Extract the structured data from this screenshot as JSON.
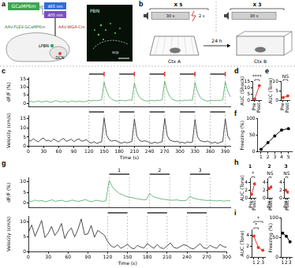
{
  "panel_labels": [
    "a",
    "b",
    "c",
    "d",
    "e",
    "f",
    "g",
    "h",
    "i"
  ],
  "diagram_a": {
    "sensor": "GCaMP6m",
    "light_1": "465 nm",
    "light_2": "405 nm",
    "virus_1": "AAV-WGA-Cre",
    "virus_2": "AAV-FLEX-GCaMP6m",
    "region_1": "LPBN",
    "region_2": "DCN",
    "image_labels": [
      "PBN",
      "scp"
    ]
  },
  "diagram_b": {
    "training": {
      "repeats": "X 5",
      "tone": "30 s",
      "shock": "2 s",
      "context": "Ctx A"
    },
    "delay": "24 h",
    "test": {
      "repeats": "X 3",
      "tone": "30 s",
      "context": "Ctx B"
    }
  },
  "chart_data": [
    {
      "type": "line",
      "y_label": "dF/F (%)",
      "color": "#2e9e4a",
      "grid": false,
      "tick_labels": "y",
      "x": [
        0,
        5,
        10,
        15,
        20,
        25,
        30,
        35,
        40,
        45,
        50,
        55,
        60,
        65,
        70,
        75,
        80,
        85,
        90,
        95,
        100,
        105,
        110,
        115,
        120,
        125,
        130,
        135,
        140,
        145,
        150,
        155,
        160,
        165,
        170,
        175,
        180,
        185,
        190,
        195,
        200,
        205,
        210,
        215,
        220,
        225,
        230,
        235,
        240,
        245,
        250,
        255,
        260,
        265,
        270,
        275,
        280,
        285,
        290,
        295,
        300,
        305,
        310,
        315,
        320,
        325,
        330,
        335,
        340,
        345,
        350,
        355,
        360,
        365,
        370,
        375,
        380,
        385,
        390,
        395,
        400
      ],
      "values": [
        1.0,
        1.4,
        0.8,
        1.2,
        1.6,
        0.9,
        1.1,
        1.5,
        1.0,
        0.7,
        1.3,
        1.8,
        1.2,
        0.9,
        1.4,
        1.1,
        0.8,
        1.6,
        1.3,
        1.0,
        1.5,
        1.2,
        0.9,
        1.4,
        1.8,
        1.5,
        2.0,
        1.6,
        1.9,
        2.2,
        13.0,
        7.5,
        4.0,
        2.6,
        1.9,
        1.5,
        1.7,
        2.0,
        1.6,
        1.8,
        2.1,
        1.9,
        12.5,
        7.0,
        3.8,
        2.4,
        1.8,
        1.4,
        1.6,
        1.9,
        1.5,
        2.0,
        1.8,
        2.2,
        13.5,
        7.8,
        4.2,
        2.7,
        1.9,
        1.5,
        1.7,
        1.6,
        2.0,
        1.8,
        2.1,
        1.9,
        12.8,
        7.2,
        3.9,
        2.5,
        1.8,
        1.4,
        1.6,
        1.9,
        1.7,
        2.0,
        1.8,
        2.2,
        13.2,
        7.4,
        4.0
      ],
      "xlim": [
        0,
        400
      ],
      "ylim": [
        -2,
        16
      ],
      "yticks": [
        0,
        5,
        10,
        15
      ],
      "tones": [
        [
          120,
          150
        ],
        [
          180,
          210
        ],
        [
          240,
          270
        ],
        [
          300,
          330
        ],
        [
          360,
          390
        ]
      ],
      "shocks": [
        150,
        210,
        270,
        330,
        390
      ]
    },
    {
      "type": "line",
      "x_label": "Time (s)",
      "y_label": "Velocity (cm/s)",
      "color": "#000000",
      "grid": false,
      "x": [
        0,
        5,
        10,
        15,
        20,
        25,
        30,
        35,
        40,
        45,
        50,
        55,
        60,
        65,
        70,
        75,
        80,
        85,
        90,
        95,
        100,
        105,
        110,
        115,
        120,
        125,
        130,
        135,
        140,
        145,
        150,
        155,
        160,
        165,
        170,
        175,
        180,
        185,
        190,
        195,
        200,
        205,
        210,
        215,
        220,
        225,
        230,
        235,
        240,
        245,
        250,
        255,
        260,
        265,
        270,
        275,
        280,
        285,
        290,
        295,
        300,
        305,
        310,
        315,
        320,
        325,
        330,
        335,
        340,
        345,
        350,
        355,
        360,
        365,
        370,
        375,
        380,
        385,
        390,
        395,
        400
      ],
      "values": [
        3.5,
        2.8,
        4.2,
        3.0,
        2.5,
        3.8,
        4.5,
        2.9,
        3.3,
        2.6,
        4.0,
        3.1,
        2.4,
        3.6,
        4.3,
        2.7,
        3.2,
        3.9,
        2.5,
        3.4,
        4.1,
        2.8,
        3.0,
        3.7,
        2.2,
        1.8,
        2.5,
        1.6,
        2.0,
        2.4,
        15.5,
        6.0,
        3.5,
        2.8,
        3.2,
        2.9,
        2.1,
        1.7,
        2.4,
        1.9,
        2.2,
        2.6,
        14.8,
        5.5,
        3.2,
        2.6,
        3.0,
        2.7,
        2.0,
        1.6,
        2.3,
        1.8,
        2.1,
        2.5,
        15.2,
        5.8,
        3.4,
        2.9,
        2.5,
        2.8,
        1.9,
        2.2,
        1.7,
        2.4,
        2.0,
        2.3,
        14.5,
        5.2,
        3.1,
        2.7,
        2.4,
        2.9,
        2.0,
        1.8,
        2.3,
        1.6,
        2.2,
        2.5,
        15.0,
        5.6,
        3.3
      ],
      "xlim": [
        0,
        400
      ],
      "xticks": [
        0,
        30,
        60,
        90,
        120,
        150,
        180,
        210,
        240,
        270,
        300,
        330,
        360,
        390
      ],
      "ylim": [
        0,
        17
      ],
      "yticks": [
        0,
        5,
        10,
        15
      ],
      "tones": [
        [
          120,
          150
        ],
        [
          180,
          210
        ],
        [
          240,
          270
        ],
        [
          300,
          330
        ],
        [
          360,
          390
        ]
      ]
    },
    {
      "type": "line",
      "categories": [
        "Pre",
        "Post"
      ],
      "values": [
        1.2,
        11.5
      ],
      "color": "#e03c31",
      "marker": "circle",
      "grid": false,
      "y_label": "AUC (Shock)",
      "ylim": [
        0,
        15
      ],
      "yticks": [
        0,
        5,
        10,
        15
      ],
      "annotations": [
        {
          "text": "****",
          "from": "Pre",
          "to": "Post"
        }
      ]
    },
    {
      "type": "line",
      "categories": [
        "Pre",
        "Post"
      ],
      "values": [
        1.5,
        2.3
      ],
      "color": "#e03c31",
      "marker": "circle",
      "grid": false,
      "y_label": "AUC (Tone)",
      "ylim": [
        0,
        10
      ],
      "yticks": [
        0,
        5,
        10
      ],
      "annotations": [
        {
          "text": "NS",
          "from": "Pre",
          "to": "Post"
        }
      ]
    },
    {
      "type": "line",
      "categories": [
        "1",
        "2",
        "3",
        "4",
        "5"
      ],
      "values": [
        8,
        28,
        48,
        66,
        70
      ],
      "color": "#000000",
      "marker": "circle",
      "grid": false,
      "y_label": "Freezing (%)",
      "ylim": [
        0,
        100
      ],
      "yticks": [
        0,
        50,
        100
      ]
    },
    {
      "type": "line",
      "y_label": "dF/F (%)",
      "color": "#2e9e4a",
      "grid": false,
      "tick_labels": "y",
      "x": [
        0,
        5,
        10,
        15,
        20,
        25,
        30,
        35,
        40,
        45,
        50,
        55,
        60,
        65,
        70,
        75,
        80,
        85,
        90,
        95,
        100,
        105,
        110,
        115,
        120,
        125,
        130,
        135,
        140,
        145,
        150,
        155,
        160,
        165,
        170,
        175,
        180,
        185,
        190,
        195,
        200,
        205,
        210,
        215,
        220,
        225,
        230,
        235,
        240,
        245,
        250,
        255,
        260,
        265,
        270,
        275,
        280,
        285,
        290,
        295,
        300
      ],
      "values": [
        1.2,
        0.8,
        1.5,
        1.0,
        1.3,
        0.7,
        1.1,
        1.6,
        0.9,
        1.2,
        1.4,
        0.8,
        1.0,
        1.5,
        1.1,
        0.9,
        1.3,
        1.7,
        1.0,
        0.8,
        1.4,
        1.2,
        0.9,
        1.1,
        10.5,
        7.5,
        5.8,
        4.6,
        3.9,
        3.2,
        2.8,
        2.5,
        2.2,
        1.9,
        1.7,
        1.6,
        4.5,
        3.2,
        2.6,
        2.2,
        1.9,
        1.7,
        1.5,
        1.4,
        1.6,
        1.3,
        1.2,
        1.4,
        3.2,
        2.4,
        2.0,
        1.7,
        1.5,
        1.3,
        1.4,
        1.2,
        1.1,
        1.3,
        1.0,
        1.2,
        1.1
      ],
      "xlim": [
        0,
        300
      ],
      "ylim": [
        -2,
        12
      ],
      "yticks": [
        0,
        5,
        10
      ],
      "tones": [
        [
          120,
          150
        ],
        [
          180,
          210
        ],
        [
          240,
          270
        ]
      ],
      "tone_labels": [
        "1",
        "2",
        "3"
      ]
    },
    {
      "type": "line",
      "x_label": "Time (s)",
      "y_label": "Velocity (cm/s)",
      "color": "#000000",
      "grid": false,
      "x": [
        0,
        5,
        10,
        15,
        20,
        25,
        30,
        35,
        40,
        45,
        50,
        55,
        60,
        65,
        70,
        75,
        80,
        85,
        90,
        95,
        100,
        105,
        110,
        115,
        120,
        125,
        130,
        135,
        140,
        145,
        150,
        155,
        160,
        165,
        170,
        175,
        180,
        185,
        190,
        195,
        200,
        205,
        210,
        215,
        220,
        225,
        230,
        235,
        240,
        245,
        250,
        255,
        260,
        265,
        270,
        275,
        280,
        285,
        290,
        295,
        300
      ],
      "values": [
        6.5,
        9.0,
        5.2,
        7.8,
        10.5,
        4.8,
        6.2,
        8.5,
        5.5,
        7.0,
        9.5,
        4.5,
        6.8,
        8.0,
        5.0,
        7.5,
        11.0,
        5.8,
        6.0,
        8.8,
        4.9,
        7.2,
        6.4,
        5.6,
        3.5,
        2.0,
        1.5,
        2.4,
        1.2,
        1.8,
        2.6,
        1.4,
        1.0,
        2.2,
        1.6,
        1.3,
        2.8,
        1.9,
        1.2,
        2.5,
        1.4,
        1.1,
        2.0,
        3.0,
        1.5,
        1.2,
        1.8,
        2.4,
        2.1,
        1.3,
        1.0,
        1.9,
        2.7,
        1.4,
        1.1,
        2.2,
        1.6,
        1.2,
        2.5,
        1.8,
        1.5
      ],
      "xlim": [
        0,
        300
      ],
      "xticks": [
        0,
        30,
        60,
        90,
        120,
        150,
        180,
        210,
        240,
        270,
        300
      ],
      "ylim": [
        0,
        12
      ],
      "yticks": [
        0,
        5,
        10
      ],
      "tones": [
        [
          120,
          150
        ],
        [
          180,
          210
        ],
        [
          240,
          270
        ]
      ]
    },
    {
      "type": "line",
      "title": "1",
      "categories": [
        "Pre",
        "Post"
      ],
      "values": [
        1.0,
        3.6
      ],
      "color": "#e03c31",
      "marker": "circle",
      "grid": false,
      "y_label": "AUC (Tone)",
      "ylim": [
        0,
        5
      ],
      "yticks": [
        0,
        2,
        4
      ],
      "annotations": [
        {
          "text": "*",
          "from": "Pre",
          "to": "Post"
        }
      ]
    },
    {
      "type": "line",
      "title": "2",
      "categories": [
        "Pre",
        "Post"
      ],
      "values": [
        2.4,
        2.8
      ],
      "color": "#e03c31",
      "marker": "circle",
      "grid": false,
      "ylim": [
        0,
        5
      ],
      "yticks": [
        0,
        2,
        4
      ],
      "annotations": [
        {
          "text": "NS",
          "from": "Pre",
          "to": "Post"
        }
      ]
    },
    {
      "type": "line",
      "title": "3",
      "categories": [
        "Pre",
        "Post"
      ],
      "values": [
        2.0,
        1.5
      ],
      "color": "#e03c31",
      "marker": "circle",
      "grid": false,
      "ylim": [
        0,
        5
      ],
      "yticks": [
        0,
        2,
        4
      ],
      "annotations": [
        {
          "text": "NS",
          "from": "Pre",
          "to": "Post"
        }
      ]
    },
    {
      "type": "line",
      "categories": [
        "1",
        "2",
        "3"
      ],
      "values": [
        3.8,
        1.8,
        1.3
      ],
      "color": "#e03c31",
      "marker": "circle",
      "grid": false,
      "y_label": "AUC (Tone)",
      "ylim": [
        0,
        5
      ],
      "yticks": [
        0,
        2,
        4
      ],
      "annotations": [
        {
          "text": "*",
          "from": "1",
          "to": "2"
        },
        {
          "text": "*",
          "from": "1",
          "to": "3"
        }
      ]
    },
    {
      "type": "line",
      "categories": [
        "1",
        "2",
        "3"
      ],
      "values": [
        62,
        54,
        40
      ],
      "color": "#000000",
      "marker": "circle",
      "grid": false,
      "y_label": "Freezing (%)",
      "ylim": [
        0,
        100
      ],
      "yticks": [
        0,
        50,
        100
      ]
    }
  ]
}
